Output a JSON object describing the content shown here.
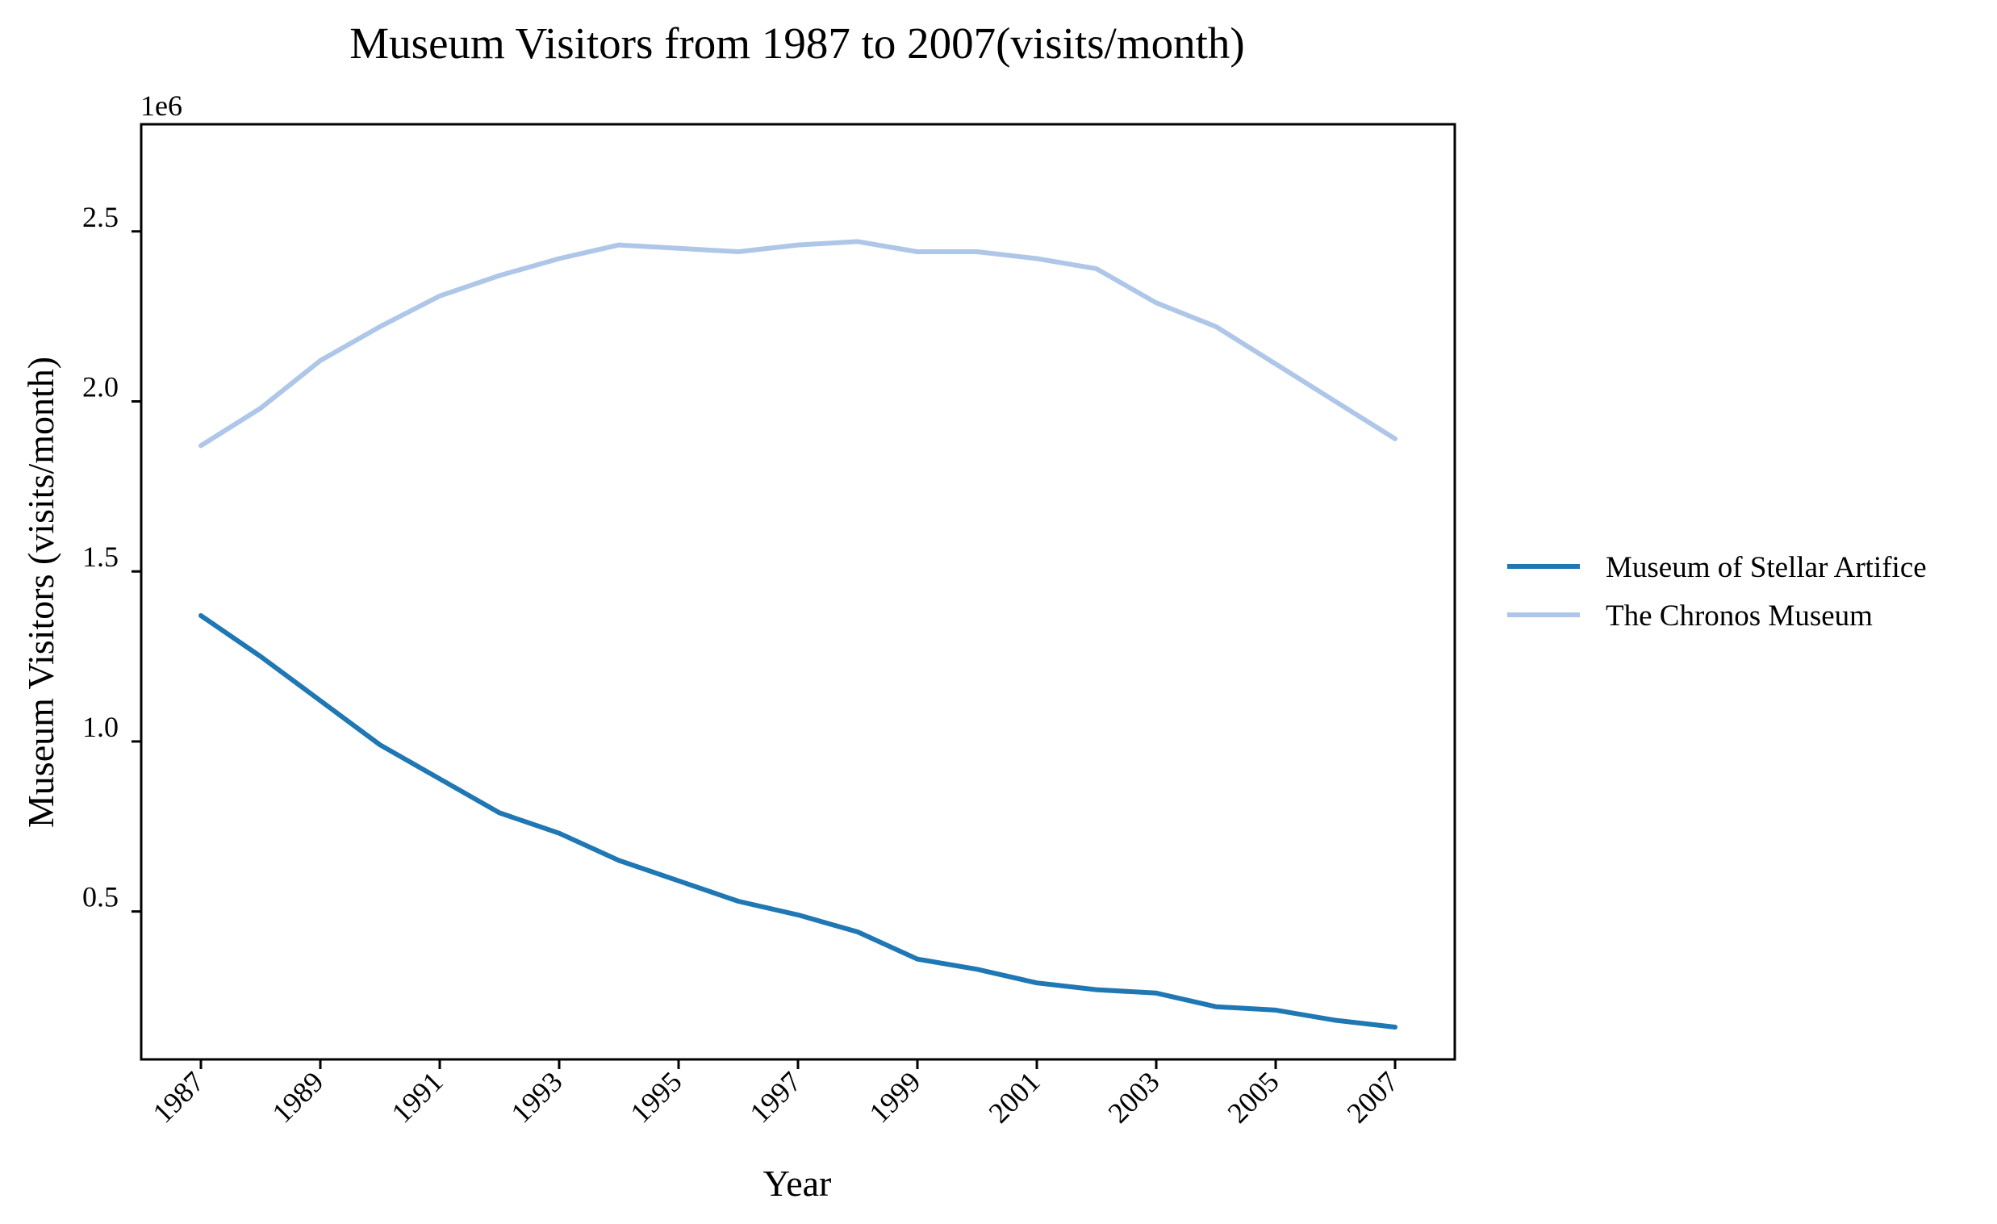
{
  "chart_data": {
    "type": "line",
    "title": "Museum Visitors from 1987 to 2007(visits/month)",
    "xlabel": "Year",
    "ylabel": "Museum Visitors (visits/month)",
    "y_offset_label": "1e6",
    "x": [
      1987,
      1988,
      1989,
      1990,
      1991,
      1992,
      1993,
      1994,
      1995,
      1996,
      1997,
      1998,
      1999,
      2000,
      2001,
      2002,
      2003,
      2004,
      2005,
      2006,
      2007
    ],
    "x_ticks": [
      "1987",
      "1989",
      "1991",
      "1993",
      "1995",
      "1997",
      "1999",
      "2001",
      "2003",
      "2005",
      "2007"
    ],
    "y_ticks": [
      "0.5",
      "1.0",
      "1.5",
      "2.0",
      "2.5"
    ],
    "xlim": [
      1986,
      2008
    ],
    "ylim": [
      0.065,
      2.815
    ],
    "grid": false,
    "legend_position": "right",
    "series": [
      {
        "name": "Museum of Stellar Artifice",
        "color": "#1f77b4",
        "values": [
          1.37,
          1.25,
          1.12,
          0.99,
          0.89,
          0.79,
          0.73,
          0.65,
          0.59,
          0.53,
          0.49,
          0.44,
          0.36,
          0.33,
          0.29,
          0.27,
          0.26,
          0.22,
          0.21,
          0.18,
          0.16
        ]
      },
      {
        "name": "The Chronos Museum",
        "color": "#aec7e8",
        "values": [
          1.87,
          1.98,
          2.12,
          2.22,
          2.31,
          2.37,
          2.42,
          2.46,
          2.45,
          2.44,
          2.46,
          2.47,
          2.44,
          2.44,
          2.42,
          2.39,
          2.29,
          2.22,
          2.11,
          2.0,
          1.89
        ]
      }
    ]
  }
}
